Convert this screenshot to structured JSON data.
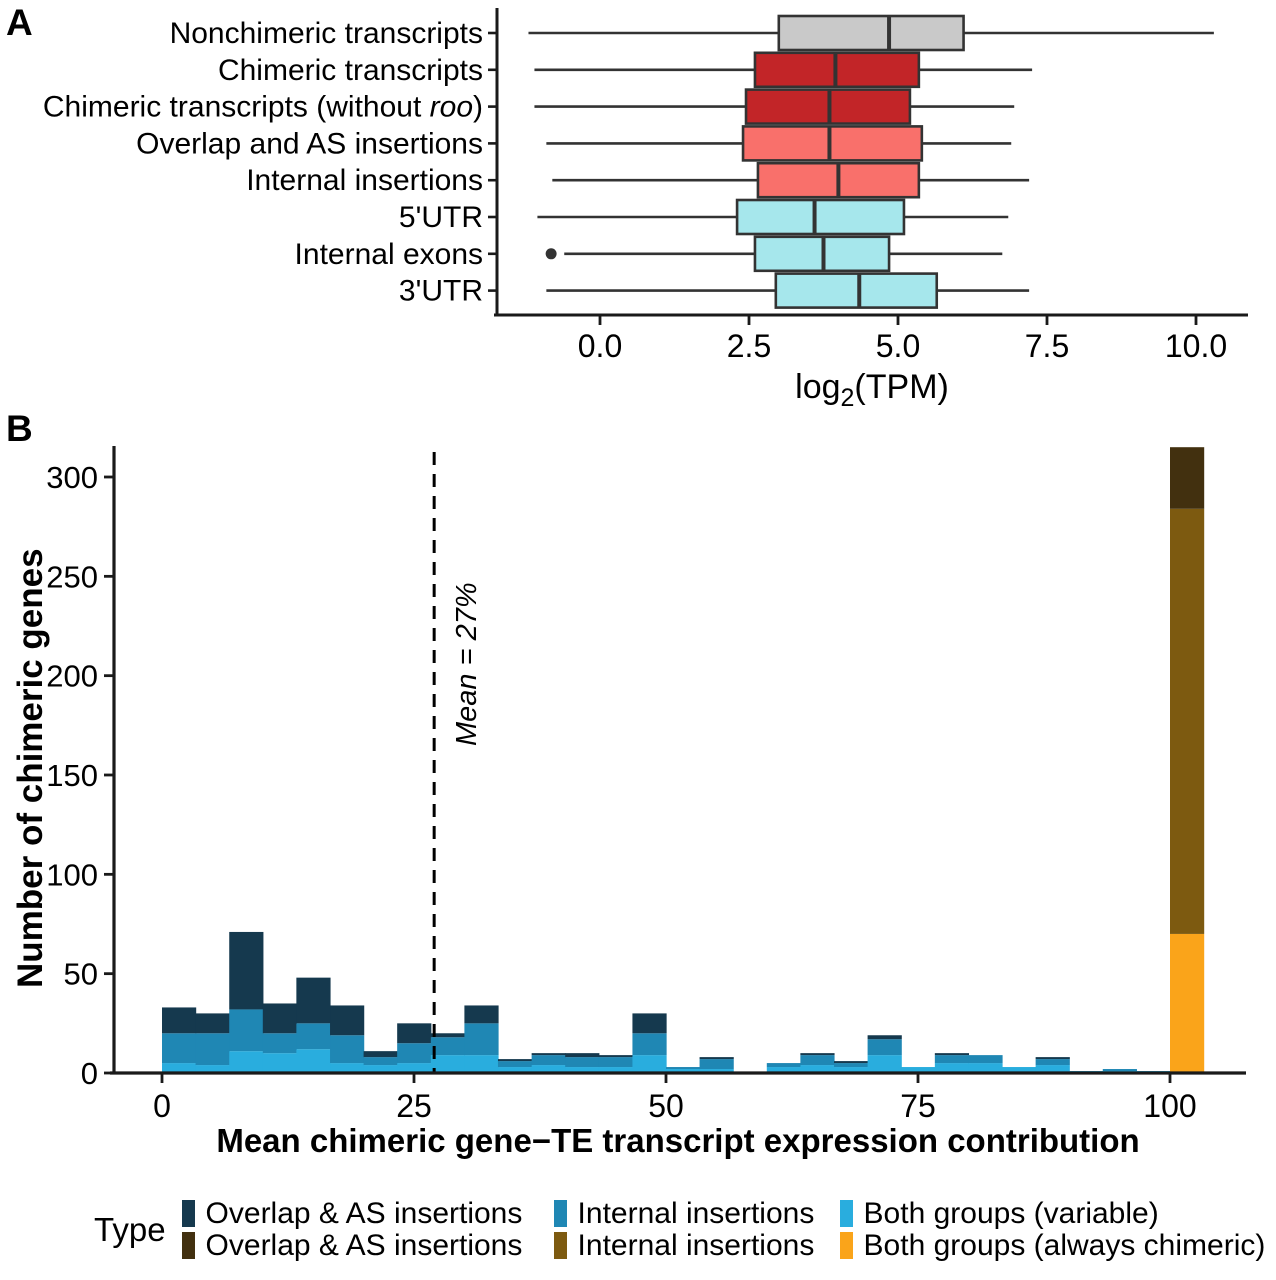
{
  "figure": {
    "panel_a_letter": "A",
    "panel_b_letter": "B"
  },
  "colors": {
    "axis": "#1a1a1a",
    "box_stroke": "#333333",
    "gray_box": "#c9c9c9",
    "dark_red_box": "#c22528",
    "salmon_box": "#f9706b",
    "cyan_box": "#a6e7ec",
    "hist_dark_navy": "#15394e",
    "hist_medium_blue": "#1f87b4",
    "hist_light_blue": "#29adde",
    "hist_dark_brown": "#42300f",
    "hist_brown": "#7d5a10",
    "hist_orange": "#faa41a"
  },
  "chart_data": [
    {
      "type": "boxplot-horizontal",
      "title": "",
      "xlabel": "log2(TPM)",
      "xlabel_parts": {
        "prefix": "log",
        "sub": "2",
        "suffix": "(TPM)"
      },
      "x_ticks": [
        0.0,
        2.5,
        5.0,
        7.5,
        10.0
      ],
      "x_tick_labels": [
        "0.0",
        "2.5",
        "5.0",
        "7.5",
        "10.0"
      ],
      "xlim": [
        -1.75,
        10.9
      ],
      "grid": false,
      "rows": [
        {
          "label": "Nonchimeric transcripts",
          "label_parts": [
            {
              "text": "Nonchimeric transcripts",
              "italic": false
            }
          ],
          "color": "#c9c9c9",
          "whisker_low": -1.2,
          "q1": 3.0,
          "median": 4.85,
          "q3": 6.1,
          "whisker_high": 10.3,
          "outliers": []
        },
        {
          "label": "Chimeric transcripts",
          "label_parts": [
            {
              "text": "Chimeric transcripts",
              "italic": false
            }
          ],
          "color": "#c22528",
          "whisker_low": -1.1,
          "q1": 2.6,
          "median": 3.95,
          "q3": 5.35,
          "whisker_high": 7.25,
          "outliers": []
        },
        {
          "label": "Chimeric transcripts (without roo)",
          "label_parts": [
            {
              "text": "Chimeric transcripts (without ",
              "italic": false
            },
            {
              "text": "roo",
              "italic": true
            },
            {
              "text": ")",
              "italic": false
            }
          ],
          "color": "#c22528",
          "whisker_low": -1.1,
          "q1": 2.45,
          "median": 3.85,
          "q3": 5.2,
          "whisker_high": 6.95,
          "outliers": []
        },
        {
          "label": "Overlap and AS insertions",
          "label_parts": [
            {
              "text": "Overlap and AS insertions",
              "italic": false
            }
          ],
          "color": "#f9706b",
          "whisker_low": -0.9,
          "q1": 2.4,
          "median": 3.85,
          "q3": 5.4,
          "whisker_high": 6.9,
          "outliers": []
        },
        {
          "label": "Internal insertions",
          "label_parts": [
            {
              "text": "Internal insertions",
              "italic": false
            }
          ],
          "color": "#f9706b",
          "whisker_low": -0.8,
          "q1": 2.65,
          "median": 4.0,
          "q3": 5.35,
          "whisker_high": 7.2,
          "outliers": []
        },
        {
          "label": "5'UTR",
          "label_parts": [
            {
              "text": "5'UTR",
              "italic": false
            }
          ],
          "color": "#a6e7ec",
          "whisker_low": -1.05,
          "q1": 2.3,
          "median": 3.6,
          "q3": 5.1,
          "whisker_high": 6.85,
          "outliers": []
        },
        {
          "label": "Internal exons",
          "label_parts": [
            {
              "text": "Internal exons",
              "italic": false
            }
          ],
          "color": "#a6e7ec",
          "whisker_low": -0.6,
          "q1": 2.6,
          "median": 3.75,
          "q3": 4.85,
          "whisker_high": 6.75,
          "outliers": [
            -0.82
          ]
        },
        {
          "label": "3'UTR",
          "label_parts": [
            {
              "text": "3'UTR",
              "italic": false
            }
          ],
          "color": "#a6e7ec",
          "whisker_low": -0.9,
          "q1": 2.95,
          "median": 4.35,
          "q3": 5.65,
          "whisker_high": 7.2,
          "outliers": []
        }
      ]
    },
    {
      "type": "bar",
      "subtype": "stacked-histogram",
      "title": "",
      "xlabel": "Mean chimeric gene−TE transcript expression contribution",
      "ylabel": "Number of chimeric genes",
      "x_ticks": [
        0,
        25,
        50,
        75,
        100
      ],
      "x_tick_labels": [
        "0",
        "25",
        "50",
        "75",
        "100"
      ],
      "y_ticks": [
        0,
        50,
        100,
        150,
        200,
        250,
        300
      ],
      "y_tick_labels": [
        "0",
        "50",
        "100",
        "150",
        "200",
        "250",
        "300"
      ],
      "xlim": [
        -5,
        107.5
      ],
      "ylim": [
        0,
        318
      ],
      "grid": false,
      "legend_position": "bottom",
      "bin_width": 3.3333,
      "bin_starts": [
        0,
        3.33,
        6.67,
        10,
        13.33,
        16.67,
        20,
        23.33,
        26.67,
        30,
        33.33,
        36.67,
        40,
        43.33,
        46.67,
        50,
        53.33,
        56.67,
        60,
        63.33,
        66.67,
        70,
        73.33,
        76.67,
        80,
        83.33,
        86.67,
        90,
        93.33,
        96.67,
        100
      ],
      "series": [
        {
          "name": "Both groups (variable)",
          "color": "#29adde",
          "values": [
            5,
            4,
            11,
            10,
            12,
            5,
            4,
            5,
            9,
            9,
            3,
            4,
            3,
            3,
            9,
            2,
            2,
            0,
            3,
            4,
            3,
            9,
            3,
            5,
            5,
            3,
            4,
            1,
            1,
            1,
            0
          ]
        },
        {
          "name": "Internal insertions",
          "color": "#1f87b4",
          "values": [
            15,
            16,
            21,
            10,
            13,
            14,
            4,
            10,
            9,
            16,
            3,
            5,
            5,
            5,
            11,
            1,
            5,
            0,
            2,
            5,
            2,
            8,
            0,
            4,
            4,
            0,
            3,
            0,
            1,
            0,
            0
          ]
        },
        {
          "name": "Overlap & AS insertions",
          "color": "#15394e",
          "values": [
            13,
            10,
            39,
            15,
            23,
            15,
            3,
            10,
            2,
            9,
            1,
            1,
            2,
            1,
            10,
            0,
            1,
            0,
            0,
            1,
            1,
            2,
            0,
            1,
            0,
            0,
            1,
            0,
            0,
            0,
            0
          ]
        },
        {
          "name": "Both groups (always chimeric)",
          "color": "#faa41a",
          "values": [
            0,
            0,
            0,
            0,
            0,
            0,
            0,
            0,
            0,
            0,
            0,
            0,
            0,
            0,
            0,
            0,
            0,
            0,
            0,
            0,
            0,
            0,
            0,
            0,
            0,
            0,
            0,
            0,
            0,
            0,
            70
          ]
        },
        {
          "name": "Internal insertions (always chimeric)",
          "color": "#7d5a10",
          "values": [
            0,
            0,
            0,
            0,
            0,
            0,
            0,
            0,
            0,
            0,
            0,
            0,
            0,
            0,
            0,
            0,
            0,
            0,
            0,
            0,
            0,
            0,
            0,
            0,
            0,
            0,
            0,
            0,
            0,
            0,
            214
          ]
        },
        {
          "name": "Overlap & AS insertions (always chimeric)",
          "color": "#42300f",
          "values": [
            0,
            0,
            0,
            0,
            0,
            0,
            0,
            0,
            0,
            0,
            0,
            0,
            0,
            0,
            0,
            0,
            0,
            0,
            0,
            0,
            0,
            0,
            0,
            0,
            0,
            0,
            0,
            0,
            0,
            0,
            31
          ]
        }
      ],
      "mean_line": {
        "x": 27,
        "label": "Mean = 27%"
      }
    }
  ],
  "legend": {
    "title": "Type",
    "items": [
      {
        "label": "Overlap & AS insertions",
        "color": "#15394e"
      },
      {
        "label": "Internal insertions",
        "color": "#1f87b4"
      },
      {
        "label": "Both groups (variable)",
        "color": "#29adde"
      },
      {
        "label": "Overlap & AS insertions",
        "color": "#42300f"
      },
      {
        "label": "Internal insertions",
        "color": "#7d5a10"
      },
      {
        "label": "Both groups (always chimeric)",
        "color": "#faa41a"
      }
    ]
  }
}
